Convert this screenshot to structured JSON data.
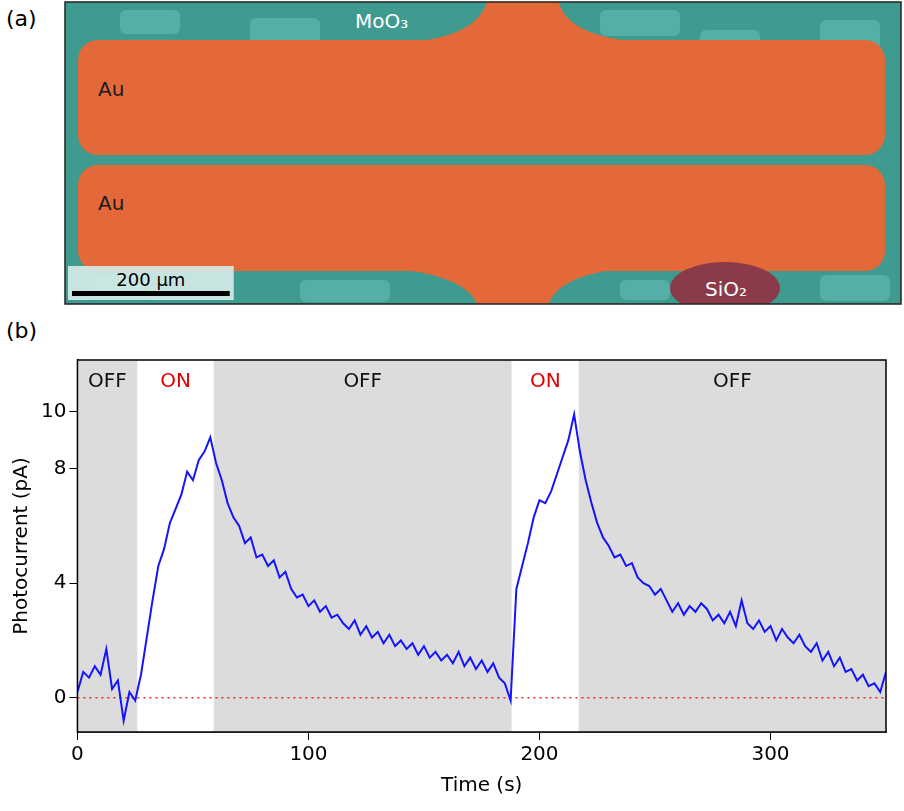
{
  "panel_a": {
    "letter": "(a)",
    "labels": [
      "MoO₃",
      "Au",
      "Au",
      "SiO₂"
    ],
    "scale_bar": {
      "value": 200,
      "label": "200 µm"
    },
    "field_um": 1060
  },
  "chart_data": {
    "type": "line",
    "panel_label": "(b)",
    "x_label": "Time (s)",
    "y_label": "Photocurrent (pA)",
    "xlim": [
      0,
      350
    ],
    "xticks": [
      0,
      100,
      200,
      300
    ],
    "ylim": [
      -1.2,
      11.8
    ],
    "yticks": [
      0,
      4,
      8,
      10
    ],
    "grid": false,
    "regions": [
      {
        "start": 0,
        "end": 26,
        "label": "OFF",
        "color": "#dcdcdc"
      },
      {
        "start": 26,
        "end": 59,
        "label": "ON",
        "color": "#ffffff"
      },
      {
        "start": 59,
        "end": 188,
        "label": "OFF",
        "color": "#dcdcdc"
      },
      {
        "start": 188,
        "end": 217,
        "label": "ON",
        "color": "#ffffff"
      },
      {
        "start": 217,
        "end": 350,
        "label": "OFF",
        "color": "#dcdcdc"
      }
    ],
    "hlines": [
      {
        "value": 0,
        "color": "#e03030",
        "line_style": "dotted"
      }
    ],
    "x": [
      0,
      2.5,
      5,
      7.5,
      10,
      12.5,
      15,
      17.5,
      20,
      22.5,
      25,
      27.5,
      30,
      32.5,
      35,
      37.5,
      40,
      42.5,
      45,
      47.5,
      50,
      52.5,
      55,
      57.5,
      60,
      62.5,
      65,
      67.5,
      70,
      72.5,
      75,
      77.5,
      80,
      82.5,
      85,
      87.5,
      90,
      92.5,
      95,
      97.5,
      100,
      102.5,
      105,
      107.5,
      110,
      112.5,
      115,
      117.5,
      120,
      122.5,
      125,
      127.5,
      130,
      132.5,
      135,
      137.5,
      140,
      142.5,
      145,
      147.5,
      150,
      152.5,
      155,
      157.5,
      160,
      162.5,
      165,
      167.5,
      170,
      172.5,
      175,
      177.5,
      180,
      182.5,
      185,
      187.5,
      190,
      192.5,
      195,
      197.5,
      200,
      202.5,
      205,
      207.5,
      210,
      212.5,
      215,
      217.5,
      220,
      222.5,
      225,
      227.5,
      230,
      232.5,
      235,
      237.5,
      240,
      242.5,
      245,
      247.5,
      250,
      252.5,
      255,
      257.5,
      260,
      262.5,
      265,
      267.5,
      270,
      272.5,
      275,
      277.5,
      280,
      282.5,
      285,
      287.5,
      290,
      292.5,
      295,
      297.5,
      300,
      302.5,
      305,
      307.5,
      310,
      312.5,
      315,
      317.5,
      320,
      322.5,
      325,
      327.5,
      330,
      332.5,
      335,
      337.5,
      340,
      342.5,
      345,
      347.5,
      350
    ],
    "series": [
      {
        "color": "#1414ff",
        "values": [
          0.2,
          0.9,
          0.7,
          1.1,
          0.8,
          1.7,
          0.3,
          0.6,
          -0.8,
          0.2,
          -0.1,
          0.8,
          2.1,
          3.4,
          4.6,
          5.2,
          6.1,
          6.6,
          7.1,
          7.9,
          7.6,
          8.3,
          8.6,
          9.1,
          8.2,
          7.6,
          6.8,
          6.3,
          6.0,
          5.4,
          5.6,
          4.9,
          5.0,
          4.6,
          4.8,
          4.2,
          4.4,
          3.8,
          3.5,
          3.6,
          3.2,
          3.4,
          3.0,
          3.2,
          2.8,
          2.9,
          2.6,
          2.4,
          2.7,
          2.2,
          2.5,
          2.1,
          2.3,
          1.9,
          2.2,
          1.8,
          2.0,
          1.7,
          1.9,
          1.5,
          1.8,
          1.4,
          1.6,
          1.3,
          1.5,
          1.2,
          1.6,
          1.1,
          1.4,
          1.0,
          1.3,
          0.9,
          1.2,
          0.7,
          0.5,
          -0.1,
          3.8,
          4.6,
          5.4,
          6.3,
          6.9,
          6.8,
          7.2,
          7.8,
          8.4,
          9.0,
          9.9,
          8.6,
          7.6,
          6.8,
          6.1,
          5.6,
          5.3,
          4.9,
          5.0,
          4.6,
          4.7,
          4.2,
          4.0,
          3.9,
          3.6,
          3.8,
          3.4,
          3.0,
          3.3,
          2.9,
          3.2,
          3.0,
          3.3,
          3.1,
          2.7,
          2.9,
          2.6,
          3.0,
          2.5,
          3.4,
          2.6,
          2.4,
          2.7,
          2.3,
          2.5,
          2.0,
          2.4,
          2.1,
          1.9,
          2.2,
          1.8,
          1.6,
          1.9,
          1.3,
          1.6,
          1.1,
          1.4,
          0.9,
          1.0,
          0.6,
          0.8,
          0.4,
          0.5,
          0.2,
          0.9
        ]
      }
    ]
  }
}
